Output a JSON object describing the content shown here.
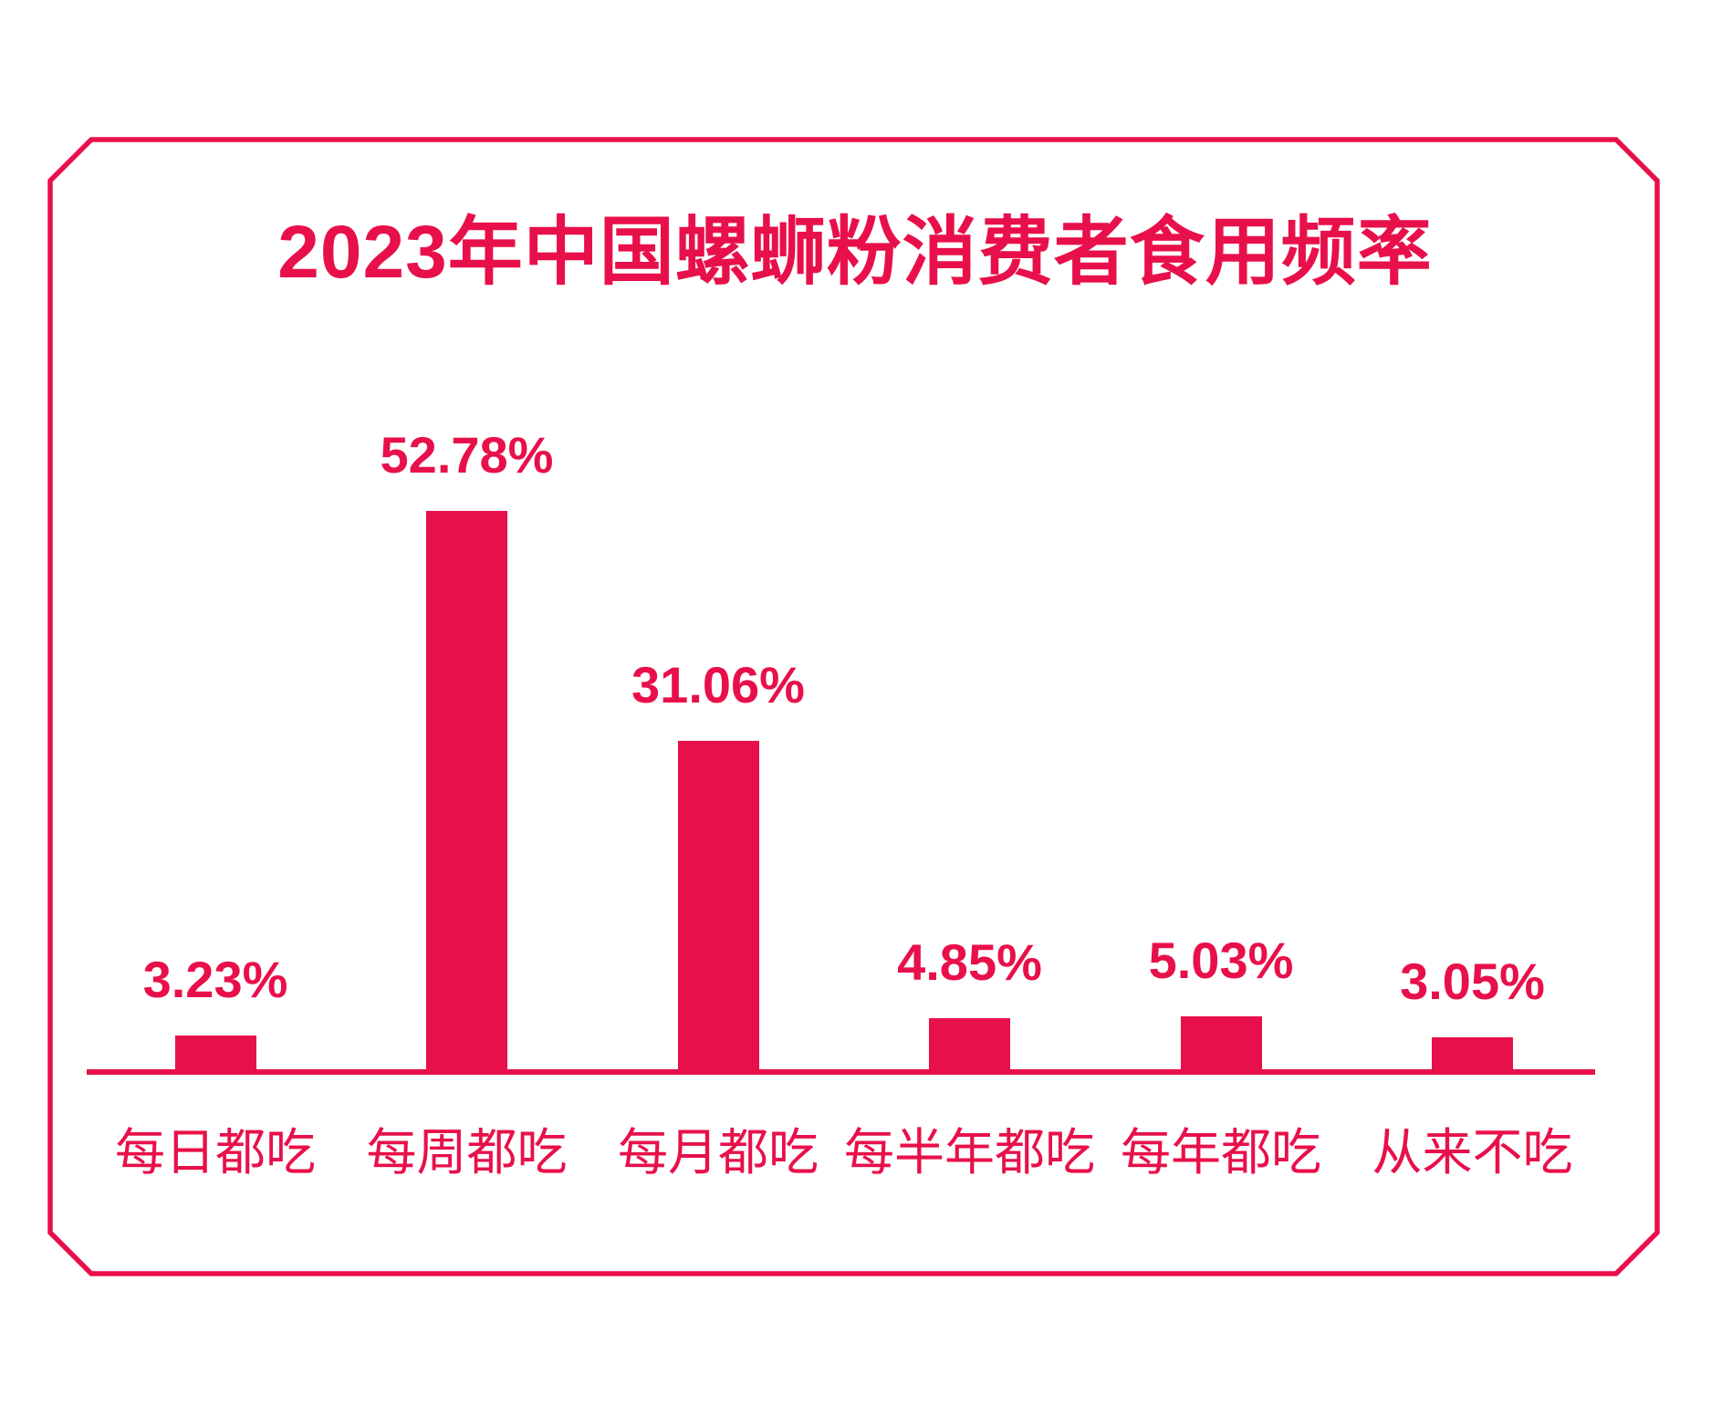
{
  "colors": {
    "accent": "#E8104A",
    "background": "#FFFFFF"
  },
  "chart_data": {
    "type": "bar",
    "title": "2023年中国螺蛳粉消费者食用频率",
    "categories": [
      "每日都吃",
      "每周都吃",
      "每月都吃",
      "每半年都吃",
      "每年都吃",
      "从来不吃"
    ],
    "values": [
      3.23,
      52.78,
      31.06,
      4.85,
      5.03,
      3.05
    ],
    "value_labels": [
      "3.23%",
      "52.78%",
      "31.06%",
      "4.85%",
      "5.03%",
      "3.05%"
    ],
    "xlabel": "",
    "ylabel": "",
    "ylim": [
      0,
      60
    ],
    "grid": false,
    "legend": null,
    "bar_color": "#E8104A",
    "label_color": "#E8104A",
    "axis_line": true,
    "frame": "chamfered-corner rectangle border"
  }
}
